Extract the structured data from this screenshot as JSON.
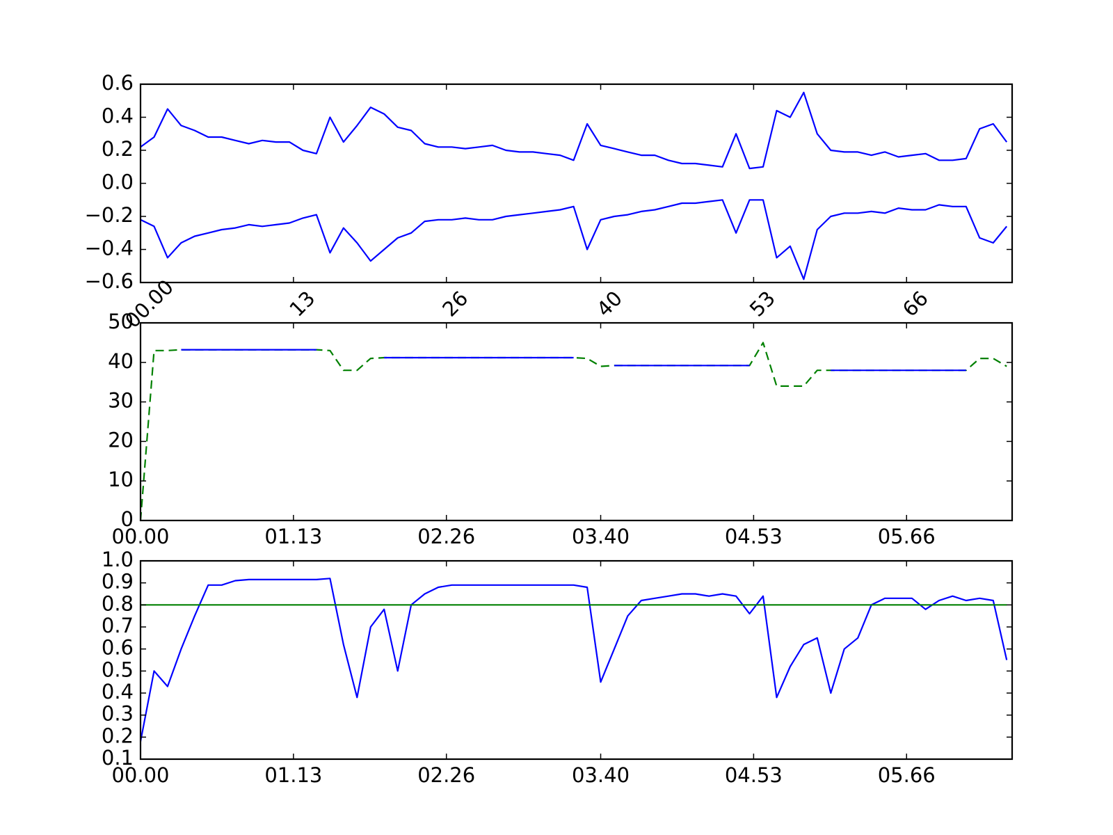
{
  "chart_data": [
    {
      "type": "line",
      "x": [
        0,
        0.1,
        0.2,
        0.3,
        0.4,
        0.5,
        0.6,
        0.7,
        0.8,
        0.9,
        1.0,
        1.1,
        1.2,
        1.3,
        1.4,
        1.5,
        1.6,
        1.7,
        1.8,
        1.9,
        2.0,
        2.1,
        2.2,
        2.3,
        2.4,
        2.5,
        2.6,
        2.7,
        2.8,
        2.9,
        3.0,
        3.1,
        3.2,
        3.3,
        3.4,
        3.5,
        3.6,
        3.7,
        3.8,
        3.9,
        4.0,
        4.1,
        4.2,
        4.3,
        4.4,
        4.5,
        4.6,
        4.7,
        4.8,
        4.9,
        5.0,
        5.1,
        5.2,
        5.3,
        5.4,
        5.5,
        5.6,
        5.7,
        5.8,
        5.9,
        6.0,
        6.1,
        6.2,
        6.3,
        6.4
      ],
      "series": [
        {
          "color": "#0000ff",
          "values": [
            0.22,
            0.28,
            0.45,
            0.35,
            0.32,
            0.28,
            0.28,
            0.26,
            0.24,
            0.26,
            0.25,
            0.25,
            0.2,
            0.18,
            0.4,
            0.25,
            0.35,
            0.46,
            0.42,
            0.34,
            0.32,
            0.24,
            0.22,
            0.22,
            0.21,
            0.22,
            0.23,
            0.2,
            0.19,
            0.19,
            0.18,
            0.17,
            0.14,
            0.36,
            0.23,
            0.21,
            0.19,
            0.17,
            0.17,
            0.14,
            0.12,
            0.12,
            0.11,
            0.1,
            0.3,
            0.09,
            0.1,
            0.44,
            0.4,
            0.55,
            0.3,
            0.2,
            0.19,
            0.19,
            0.17,
            0.19,
            0.16,
            0.17,
            0.18,
            0.14,
            0.14,
            0.15,
            0.33,
            0.36,
            0.25
          ]
        },
        {
          "color": "#0000ff",
          "values": [
            -0.22,
            -0.26,
            -0.45,
            -0.36,
            -0.32,
            -0.3,
            -0.28,
            -0.27,
            -0.25,
            -0.26,
            -0.25,
            -0.24,
            -0.21,
            -0.19,
            -0.42,
            -0.27,
            -0.36,
            -0.47,
            -0.4,
            -0.33,
            -0.3,
            -0.23,
            -0.22,
            -0.22,
            -0.21,
            -0.22,
            -0.22,
            -0.2,
            -0.19,
            -0.18,
            -0.17,
            -0.16,
            -0.14,
            -0.4,
            -0.22,
            -0.2,
            -0.19,
            -0.17,
            -0.16,
            -0.14,
            -0.12,
            -0.12,
            -0.11,
            -0.1,
            -0.3,
            -0.1,
            -0.1,
            -0.45,
            -0.38,
            -0.58,
            -0.28,
            -0.2,
            -0.18,
            -0.18,
            -0.17,
            -0.18,
            -0.15,
            -0.16,
            -0.16,
            -0.13,
            -0.14,
            -0.14,
            -0.33,
            -0.36,
            -0.26
          ]
        }
      ],
      "xlim": [
        0,
        6.44
      ],
      "xticks": [
        {
          "value": 0,
          "label": "00.00"
        },
        {
          "value": 1.13,
          "label": "13"
        },
        {
          "value": 2.26,
          "label": "26"
        },
        {
          "value": 3.4,
          "label": "40"
        },
        {
          "value": 4.53,
          "label": "53"
        },
        {
          "value": 5.66,
          "label": "66"
        }
      ],
      "xtick_rotation": 45,
      "ylim": [
        -0.6,
        0.6
      ],
      "yticks": [
        {
          "value": -0.6,
          "label": "−0.6"
        },
        {
          "value": -0.4,
          "label": "−0.4"
        },
        {
          "value": -0.2,
          "label": "−0.2"
        },
        {
          "value": 0,
          "label": "0.0"
        },
        0.2,
        0.4,
        0.6
      ]
    },
    {
      "type": "line",
      "x": [
        0,
        0.1,
        0.2,
        0.3,
        0.4,
        0.5,
        0.6,
        0.7,
        0.8,
        0.9,
        1.0,
        1.1,
        1.2,
        1.3,
        1.4,
        1.5,
        1.6,
        1.7,
        1.8,
        1.9,
        2.0,
        2.1,
        2.2,
        2.3,
        2.4,
        2.5,
        2.6,
        2.7,
        2.8,
        2.9,
        3.0,
        3.1,
        3.2,
        3.3,
        3.4,
        3.5,
        3.6,
        3.7,
        3.8,
        3.9,
        4.0,
        4.1,
        4.2,
        4.3,
        4.4,
        4.5,
        4.6,
        4.7,
        4.8,
        4.9,
        5.0,
        5.1,
        5.2,
        5.3,
        5.4,
        5.5,
        5.6,
        5.7,
        5.8,
        5.9,
        6.0,
        6.1,
        6.2,
        6.3,
        6.4
      ],
      "series": [
        {
          "color": "#008000",
          "dashed": true,
          "values": [
            0,
            43,
            43,
            43.2,
            43.2,
            43.2,
            43.2,
            43.2,
            43.2,
            43.2,
            43.2,
            43.2,
            43.2,
            43.2,
            43,
            38,
            38,
            41,
            41.2,
            41.2,
            41.2,
            41.2,
            41.2,
            41.2,
            41.2,
            41.2,
            41.2,
            41.2,
            41.2,
            41.2,
            41.2,
            41.2,
            41.2,
            41,
            39,
            39.2,
            39.2,
            39.2,
            39.2,
            39.2,
            39.2,
            39.2,
            39.2,
            39.2,
            39.2,
            39.2,
            45,
            34,
            34,
            34,
            38,
            38,
            38,
            38,
            38,
            38,
            38,
            38,
            38,
            38,
            38,
            38,
            41,
            41,
            39
          ]
        },
        {
          "color": "#0000ff",
          "values": [
            null,
            null,
            null,
            43.2,
            43.2,
            43.2,
            43.2,
            43.2,
            43.2,
            43.2,
            43.2,
            43.2,
            43.2,
            43.2,
            null,
            null,
            38,
            null,
            41.2,
            41.2,
            41.2,
            41.2,
            41.2,
            41.2,
            41.2,
            41.2,
            41.2,
            41.2,
            41.2,
            41.2,
            41.2,
            41.2,
            41.2,
            null,
            null,
            39.2,
            39.2,
            39.2,
            39.2,
            39.2,
            39.2,
            39.2,
            39.2,
            39.2,
            39.2,
            39.2,
            null,
            null,
            null,
            null,
            null,
            38,
            38,
            38,
            38,
            38,
            38,
            38,
            38,
            38,
            38,
            38,
            null,
            41,
            null
          ]
        }
      ],
      "xlim": [
        0,
        6.44
      ],
      "xticks": [
        {
          "value": 0,
          "label": "00.00"
        },
        {
          "value": 1.13,
          "label": "01.13"
        },
        {
          "value": 2.26,
          "label": "02.26"
        },
        {
          "value": 3.4,
          "label": "03.40"
        },
        {
          "value": 4.53,
          "label": "04.53"
        },
        {
          "value": 5.66,
          "label": "05.66"
        }
      ],
      "ylim": [
        0,
        50
      ],
      "yticks": [
        0,
        10,
        20,
        30,
        40,
        50
      ]
    },
    {
      "type": "line",
      "x": [
        0,
        0.1,
        0.2,
        0.3,
        0.4,
        0.5,
        0.6,
        0.7,
        0.8,
        0.9,
        1.0,
        1.1,
        1.2,
        1.3,
        1.4,
        1.5,
        1.6,
        1.7,
        1.8,
        1.9,
        2.0,
        2.1,
        2.2,
        2.3,
        2.4,
        2.5,
        2.6,
        2.7,
        2.8,
        2.9,
        3.0,
        3.1,
        3.2,
        3.3,
        3.4,
        3.5,
        3.6,
        3.7,
        3.8,
        3.9,
        4.0,
        4.1,
        4.2,
        4.3,
        4.4,
        4.5,
        4.6,
        4.7,
        4.8,
        4.9,
        5.0,
        5.1,
        5.2,
        5.3,
        5.4,
        5.5,
        5.6,
        5.7,
        5.8,
        5.9,
        6.0,
        6.1,
        6.2,
        6.3,
        6.4
      ],
      "series": [
        {
          "color": "#0000ff",
          "values": [
            0.18,
            0.5,
            0.43,
            0.6,
            0.75,
            0.89,
            0.89,
            0.91,
            0.915,
            0.915,
            0.915,
            0.915,
            0.915,
            0.915,
            0.92,
            0.62,
            0.38,
            0.7,
            0.78,
            0.5,
            0.8,
            0.85,
            0.88,
            0.89,
            0.89,
            0.89,
            0.89,
            0.89,
            0.89,
            0.89,
            0.89,
            0.89,
            0.89,
            0.88,
            0.45,
            0.6,
            0.75,
            0.82,
            0.83,
            0.84,
            0.85,
            0.85,
            0.84,
            0.85,
            0.84,
            0.76,
            0.84,
            0.38,
            0.52,
            0.62,
            0.65,
            0.4,
            0.6,
            0.65,
            0.8,
            0.83,
            0.83,
            0.83,
            0.78,
            0.82,
            0.84,
            0.82,
            0.83,
            0.82,
            0.55
          ]
        },
        {
          "color": "#008000",
          "values": [
            0.8,
            0.8,
            0.8,
            0.8,
            0.8,
            0.8,
            0.8,
            0.8,
            0.8,
            0.8,
            0.8,
            0.8,
            0.8,
            0.8,
            0.8,
            0.8,
            0.8,
            0.8,
            0.8,
            0.8,
            0.8,
            0.8,
            0.8,
            0.8,
            0.8,
            0.8,
            0.8,
            0.8,
            0.8,
            0.8,
            0.8,
            0.8,
            0.8,
            0.8,
            0.8,
            0.8,
            0.8,
            0.8,
            0.8,
            0.8,
            0.8,
            0.8,
            0.8,
            0.8,
            0.8,
            0.8,
            0.8,
            0.8,
            0.8,
            0.8,
            0.8,
            0.8,
            0.8,
            0.8,
            0.8,
            0.8,
            0.8,
            0.8,
            0.8,
            0.8,
            0.8,
            0.8,
            0.8,
            0.8,
            0.8
          ]
        }
      ],
      "xlim": [
        0,
        6.44
      ],
      "xticks": [
        {
          "value": 0,
          "label": "00.00"
        },
        {
          "value": 1.13,
          "label": "01.13"
        },
        {
          "value": 2.26,
          "label": "02.26"
        },
        {
          "value": 3.4,
          "label": "03.40"
        },
        {
          "value": 4.53,
          "label": "04.53"
        },
        {
          "value": 5.66,
          "label": "05.66"
        }
      ],
      "ylim": [
        0.1,
        1.0
      ],
      "yticks": [
        0.1,
        0.2,
        0.3,
        0.4,
        0.5,
        0.6,
        0.7,
        0.8,
        0.9,
        {
          "value": 1.0,
          "label": "1.0"
        }
      ]
    }
  ]
}
